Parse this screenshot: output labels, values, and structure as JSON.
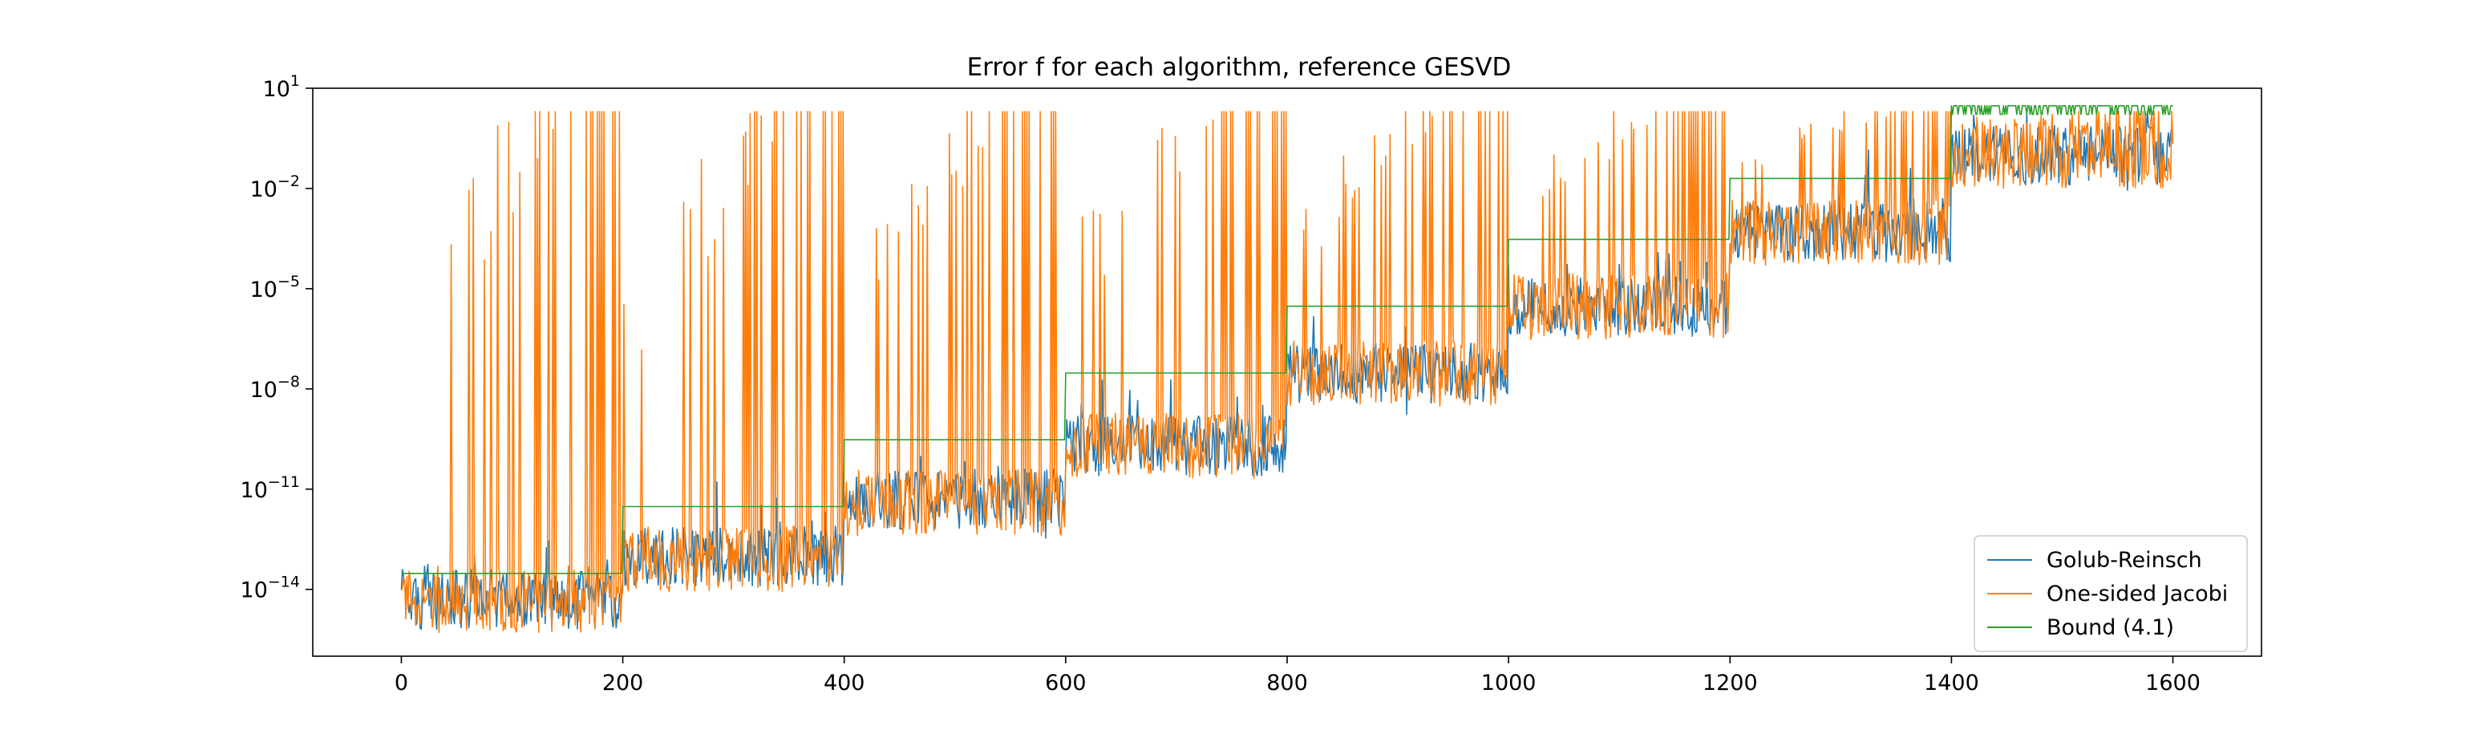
{
  "chart_data": {
    "type": "line",
    "title": "Error f for each algorithm, reference GESVD",
    "xlabel": "",
    "ylabel": "",
    "xlim": [
      -80,
      1680
    ],
    "ylim": [
      1e-16,
      10
    ],
    "yscale": "log",
    "grid": false,
    "legend_position": "lower-right",
    "x_ticks": [
      0,
      200,
      400,
      600,
      800,
      1000,
      1200,
      1400,
      1600
    ],
    "x_tick_labels": [
      "0",
      "200",
      "400",
      "600",
      "800",
      "1000",
      "1200",
      "1400",
      "1600"
    ],
    "y_ticks": [
      1e-14,
      1e-11,
      1e-08,
      1e-05,
      0.01,
      10
    ],
    "y_tick_labels": [
      {
        "base": "10",
        "exp": "−14"
      },
      {
        "base": "10",
        "exp": "−11"
      },
      {
        "base": "10",
        "exp": "−8"
      },
      {
        "base": "10",
        "exp": "−5"
      },
      {
        "base": "10",
        "exp": "−2"
      },
      {
        "base": "10",
        "exp": "1"
      }
    ],
    "segments": [
      {
        "x_start": 0,
        "x_end": 200,
        "bound": 3e-14,
        "gr_center": 5e-15,
        "jac_center": 5e-15,
        "spike_max": 2
      },
      {
        "x_start": 200,
        "x_end": 400,
        "bound": 3e-12,
        "gr_center": 1e-13,
        "jac_center": 8e-14,
        "spike_max": 2
      },
      {
        "x_start": 400,
        "x_end": 600,
        "bound": 3e-10,
        "gr_center": 5e-12,
        "jac_center": 4e-12,
        "spike_max": 2
      },
      {
        "x_start": 600,
        "x_end": 800,
        "bound": 3e-08,
        "gr_center": 2e-10,
        "jac_center": 2e-10,
        "spike_max": 2
      },
      {
        "x_start": 800,
        "x_end": 1000,
        "bound": 3e-06,
        "gr_center": 3e-08,
        "jac_center": 3e-08,
        "spike_max": 2
      },
      {
        "x_start": 1000,
        "x_end": 1200,
        "bound": 0.0003,
        "gr_center": 3e-06,
        "jac_center": 3e-06,
        "spike_max": 2
      },
      {
        "x_start": 1200,
        "x_end": 1400,
        "bound": 0.02,
        "gr_center": 0.0005,
        "jac_center": 0.0005,
        "spike_max": 2
      },
      {
        "x_start": 1400,
        "x_end": 1600,
        "bound": 3,
        "gr_center": 0.1,
        "jac_center": 0.1,
        "spike_max": 2
      }
    ],
    "series": [
      {
        "name": "Golub-Reinsch",
        "color": "#1f77b4"
      },
      {
        "name": "One-sided Jacobi",
        "color": "#ff7f0e"
      },
      {
        "name": "Bound (4.1)",
        "color": "#2ca02c"
      }
    ]
  }
}
